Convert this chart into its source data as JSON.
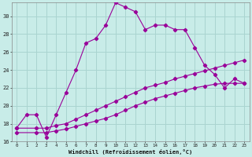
{
  "xlabel": "Windchill (Refroidissement éolien,°C)",
  "bg_color": "#c8ece8",
  "grid_color": "#aad4d0",
  "line_color": "#990099",
  "ylim": [
    16,
    31.5
  ],
  "xlim": [
    -0.5,
    23.5
  ],
  "yticks": [
    16,
    18,
    20,
    22,
    24,
    26,
    28,
    30
  ],
  "xticks": [
    0,
    1,
    2,
    3,
    4,
    5,
    6,
    7,
    8,
    9,
    10,
    11,
    12,
    13,
    14,
    15,
    16,
    17,
    18,
    19,
    20,
    21,
    22,
    23
  ],
  "series1_x": [
    0,
    1,
    2,
    3,
    4,
    5,
    6,
    7,
    8,
    9,
    10,
    11,
    12,
    13,
    14,
    15,
    16,
    17,
    18,
    19,
    20,
    21,
    22,
    23
  ],
  "series1_y": [
    17.5,
    19.0,
    19.0,
    16.5,
    19.0,
    21.5,
    24.0,
    27.0,
    27.5,
    29.0,
    31.5,
    31.0,
    30.5,
    28.5,
    29.0,
    29.0,
    28.5,
    28.5,
    26.5,
    24.5,
    23.5,
    22.0,
    23.0,
    22.5
  ],
  "series2_x": [
    0,
    2,
    3,
    4,
    5,
    6,
    7,
    8,
    9,
    10,
    11,
    12,
    13,
    14,
    15,
    16,
    17,
    18,
    19,
    20,
    21,
    22,
    23
  ],
  "series2_y": [
    17.5,
    17.5,
    17.5,
    17.8,
    18.0,
    18.5,
    19.0,
    19.5,
    20.0,
    20.5,
    21.0,
    21.5,
    22.0,
    22.3,
    22.6,
    23.0,
    23.3,
    23.6,
    23.9,
    24.2,
    24.5,
    24.8,
    25.1
  ],
  "series3_x": [
    0,
    2,
    3,
    4,
    5,
    6,
    7,
    8,
    9,
    10,
    11,
    12,
    13,
    14,
    15,
    16,
    17,
    18,
    19,
    20,
    21,
    22,
    23
  ],
  "series3_y": [
    17.0,
    17.0,
    17.0,
    17.2,
    17.4,
    17.7,
    18.0,
    18.3,
    18.6,
    19.0,
    19.5,
    20.0,
    20.4,
    20.8,
    21.1,
    21.4,
    21.7,
    22.0,
    22.2,
    22.4,
    22.5,
    22.5,
    22.5
  ]
}
